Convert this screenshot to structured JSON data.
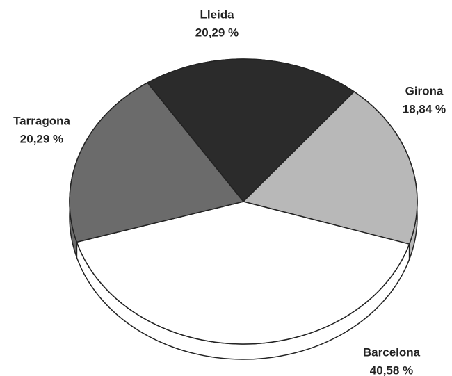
{
  "chart_data": {
    "type": "pie",
    "categories": [
      "Lleida",
      "Girona",
      "Barcelona",
      "Tarragona"
    ],
    "values": [
      20.29,
      18.84,
      40.58,
      20.29
    ],
    "value_labels": [
      "20,29 %",
      "18,84 %",
      "40,58 %",
      "20,29 %"
    ],
    "colors": [
      "#2b2b2b",
      "#b8b8b8",
      "#ffffff",
      "#6b6b6b"
    ]
  }
}
